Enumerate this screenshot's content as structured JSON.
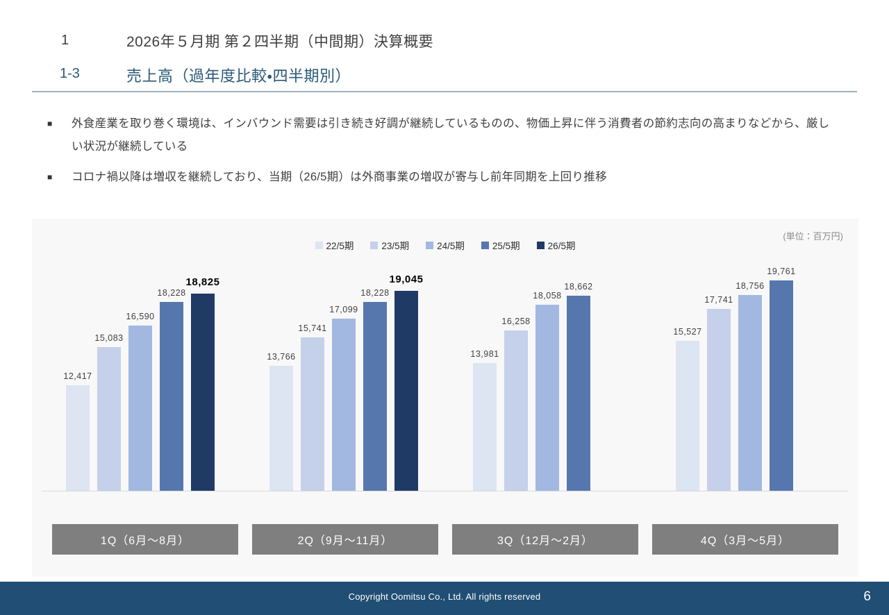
{
  "header": {
    "section_no": "1",
    "section_title": "2026年５月期 第２四半期（中間期）決算概要",
    "sub_no": "1-3",
    "sub_title": "売上高（過年度比較・四半期別）"
  },
  "bullet_marker": "■",
  "bullets": [
    "外食産業を取り巻く環境は、インバウンド需要は引き続き好調が継続しているものの、物価上昇に伴う消費者の節約志向の高まりなどから、厳しい状況が継続している",
    "コロナ禍以降は増収を継続しており、当期（26/5期）は外商事業の増収が寄与し前年同期を上回り推移"
  ],
  "chart_data": {
    "type": "bar",
    "title": "売上高（過年度比較・四半期別）",
    "unit_label": "(単位：百万円)",
    "categories": [
      "1Q（6月～8月）",
      "2Q（9月～11月）",
      "3Q（12月～2月）",
      "4Q（3月～5月）"
    ],
    "series": [
      {
        "name": "22/5期",
        "color": "#dde4f2",
        "values": [
          12417,
          13766,
          13981,
          15527
        ]
      },
      {
        "name": "23/5期",
        "color": "#c5d1ea",
        "values": [
          15083,
          15741,
          16258,
          17741
        ]
      },
      {
        "name": "24/5期",
        "color": "#a3b8e0",
        "values": [
          16590,
          17099,
          18058,
          18756
        ]
      },
      {
        "name": "25/5期",
        "color": "#5577ad",
        "values": [
          18228,
          18228,
          18662,
          19761
        ]
      },
      {
        "name": "26/5期",
        "color": "#1f3a64",
        "values": [
          18825,
          19045,
          null,
          null
        ],
        "emphasized_labels": true
      }
    ],
    "ylim": [
      5000,
      20000
    ],
    "grid": false,
    "legend_position": "top",
    "value_labels": "above-bars, thousands with comma"
  },
  "colors": {
    "heading_blue": "#2b5a78",
    "footer_navy": "#204e74",
    "quarter_box_gray": "#7f7f7f",
    "panel_bg": "#f8f8f8"
  },
  "footer": {
    "copyright": "Copyright Oomitsu Co., Ltd. All rights reserved",
    "page_number": "6"
  }
}
